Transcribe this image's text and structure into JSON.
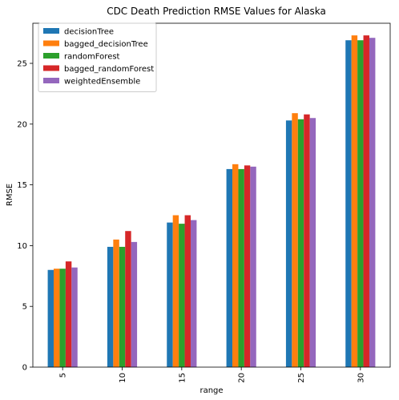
{
  "chart_data": {
    "type": "bar",
    "title": "CDC Death Prediction RMSE Values for Alaska",
    "xlabel": "range",
    "ylabel": "RMSE",
    "categories": [
      "5",
      "10",
      "15",
      "20",
      "25",
      "30"
    ],
    "ylim": [
      0,
      28.3
    ],
    "yticks": [
      0,
      5,
      10,
      15,
      20,
      25
    ],
    "grid": false,
    "legend_position": "top-left",
    "series": [
      {
        "name": "decisionTree",
        "color": "#1f77b4",
        "values": [
          8.0,
          9.9,
          11.9,
          16.3,
          20.3,
          26.9
        ]
      },
      {
        "name": "bagged_decisionTree",
        "color": "#ff7f0e",
        "values": [
          8.1,
          10.5,
          12.5,
          16.7,
          20.9,
          27.3
        ]
      },
      {
        "name": "randomForest",
        "color": "#2ca02c",
        "values": [
          8.1,
          9.9,
          11.8,
          16.3,
          20.4,
          26.9
        ]
      },
      {
        "name": "bagged_randomForest",
        "color": "#d62728",
        "values": [
          8.7,
          11.2,
          12.5,
          16.6,
          20.8,
          27.3
        ]
      },
      {
        "name": "weightedEnsemble",
        "color": "#9467bd",
        "values": [
          8.2,
          10.3,
          12.1,
          16.5,
          20.5,
          27.1
        ]
      }
    ]
  }
}
